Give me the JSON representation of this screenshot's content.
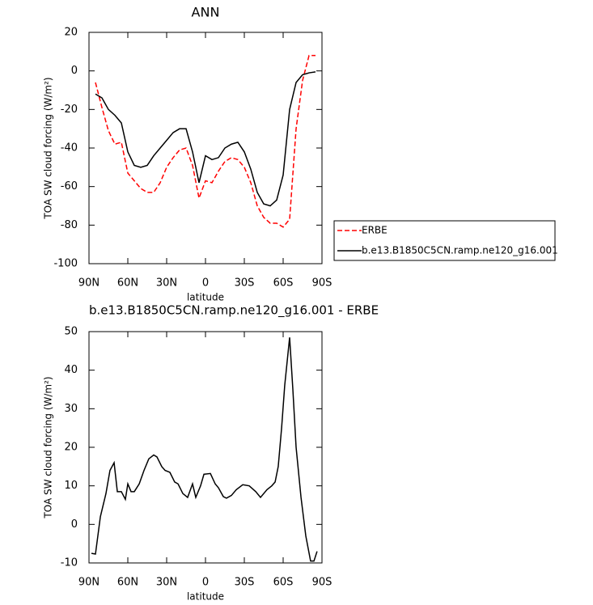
{
  "chart_data": [
    {
      "type": "line",
      "title": "ANN",
      "xlabel": "latitude",
      "ylabel": "TOA SW cloud forcing (W/m²)",
      "x": [
        85,
        80,
        75,
        70,
        65,
        60,
        55,
        50,
        45,
        40,
        35,
        30,
        25,
        20,
        15,
        10,
        5,
        0,
        -5,
        -10,
        -15,
        -20,
        -25,
        -30,
        -35,
        -40,
        -45,
        -50,
        -55,
        -60,
        -65,
        -70,
        -75,
        -80,
        -85
      ],
      "series": [
        {
          "name": "ERBE",
          "color": "#ff0000",
          "style": "dashed",
          "values": [
            -6,
            -19,
            -31,
            -38,
            -37,
            -53,
            -57,
            -61,
            -63,
            -63,
            -58,
            -50,
            -45,
            -41,
            -40,
            -49,
            -66,
            -57,
            -58,
            -52,
            -47,
            -45,
            -46,
            -50,
            -58,
            -70,
            -76,
            -79,
            -79,
            -81,
            -77,
            -30,
            -5,
            8,
            8
          ]
        },
        {
          "name": "b.e13.B1850C5CN.ramp.ne120_g16.001",
          "color": "#000000",
          "style": "solid",
          "values": [
            -12,
            -14,
            -20,
            -23,
            -27,
            -42,
            -49,
            -50,
            -49,
            -44,
            -40,
            -36,
            -32,
            -30,
            -30,
            -42,
            -58,
            -44,
            -46,
            -45,
            -40,
            -38,
            -37,
            -42,
            -51,
            -63,
            -69,
            -70,
            -67,
            -54,
            -20,
            -6,
            -2,
            -1,
            -0.5
          ]
        }
      ],
      "xlim": [
        90,
        -90
      ],
      "xticks": [
        {
          "value": 90,
          "label": "90N"
        },
        {
          "value": 60,
          "label": "60N"
        },
        {
          "value": 30,
          "label": "30N"
        },
        0,
        {
          "value": -30,
          "label": "30S"
        },
        {
          "value": -60,
          "label": "60S"
        },
        {
          "value": -90,
          "label": "90S"
        }
      ],
      "ylim": [
        -100,
        20
      ],
      "yticks": [
        -100,
        -80,
        -60,
        -40,
        -20,
        0,
        20
      ],
      "legend": "right"
    },
    {
      "type": "line",
      "title": "b.e13.B1850C5CN.ramp.ne120_g16.001 - ERBE",
      "xlabel": "latitude",
      "ylabel": "TOA SW cloud forcing (W/m²)",
      "x": [
        88.1,
        85,
        81.2,
        76.9,
        73.8,
        70.6,
        68.1,
        65,
        61.9,
        60,
        57.5,
        55,
        51.2,
        47.5,
        43.8,
        40,
        37.5,
        33.8,
        31.2,
        27.5,
        23.8,
        21.2,
        17.5,
        13.8,
        10,
        7.5,
        3.8,
        1.2,
        -3.8,
        -7.5,
        -10,
        -13.8,
        -16.2,
        -20,
        -23.8,
        -28.8,
        -33.8,
        -38.8,
        -42.5,
        -47.5,
        -51.2,
        -53.8,
        -56.2,
        -58.8,
        -61.2,
        -65,
        -67.5,
        -70,
        -73.8,
        -77.5,
        -81.2,
        -83.8,
        -86.2
      ],
      "values": [
        -7.5,
        -7.7,
        2,
        8,
        14,
        16,
        8.5,
        8.5,
        6.5,
        10.5,
        8.5,
        8.5,
        10.5,
        14,
        17,
        18,
        17.5,
        15,
        14,
        13.5,
        11,
        10.5,
        8,
        7,
        10.5,
        7,
        10,
        13,
        13.2,
        10.5,
        9.5,
        7.2,
        6.8,
        7.5,
        9,
        10.3,
        10,
        8.5,
        7,
        9,
        10,
        11,
        15,
        25,
        36,
        48.5,
        35,
        20,
        7,
        -3,
        -9.5,
        -9.5,
        -7
      ],
      "color": "#000000",
      "xlim": [
        90,
        -90
      ],
      "xticks": [
        {
          "value": 90,
          "label": "90N"
        },
        {
          "value": 60,
          "label": "60N"
        },
        {
          "value": 30,
          "label": "30N"
        },
        0,
        {
          "value": -30,
          "label": "30S"
        },
        {
          "value": -60,
          "label": "60S"
        },
        {
          "value": -90,
          "label": "90S"
        }
      ],
      "ylim": [
        -10,
        50
      ],
      "yticks": [
        -10,
        0,
        10,
        20,
        30,
        40,
        50
      ]
    }
  ]
}
